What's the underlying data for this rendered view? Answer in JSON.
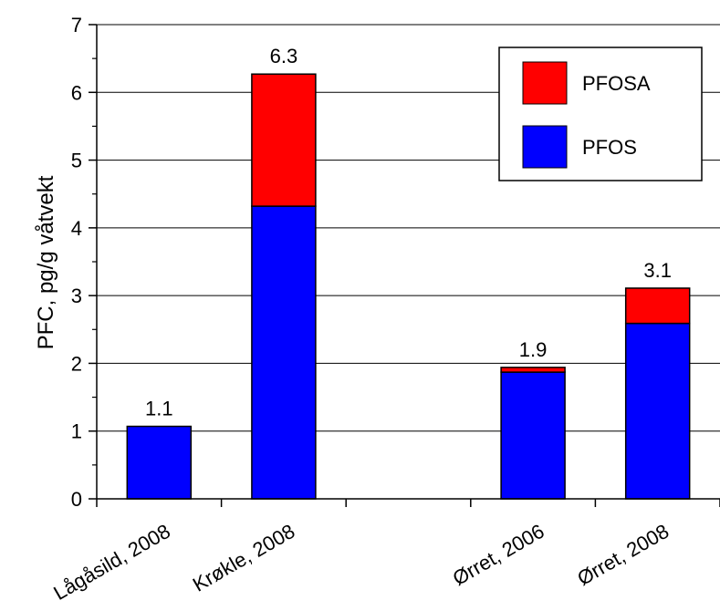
{
  "chart_data": {
    "type": "bar",
    "stacked": true,
    "title": "",
    "xlabel": "",
    "ylabel": "PFC, pg/g våtvekt",
    "ylim": [
      0,
      7
    ],
    "yticks": [
      "0",
      "1",
      "2",
      "3",
      "4",
      "5",
      "6",
      "7"
    ],
    "grid": true,
    "legend_position": "top-right",
    "categories": [
      "Lågåsild, 2008",
      "Krøkle, 2008",
      "",
      "Ørret, 2006",
      "Ørret, 2008"
    ],
    "series": [
      {
        "name": "PFOS",
        "color": "#0000ff",
        "values": [
          1.07,
          4.32,
          0,
          1.87,
          2.59
        ]
      },
      {
        "name": "PFOSA",
        "color": "#ff0000",
        "values": [
          0.0,
          1.95,
          0,
          0.07,
          0.52
        ]
      }
    ],
    "data_labels": [
      "1.1",
      "6.3",
      "",
      "1.9",
      "3.1"
    ]
  }
}
